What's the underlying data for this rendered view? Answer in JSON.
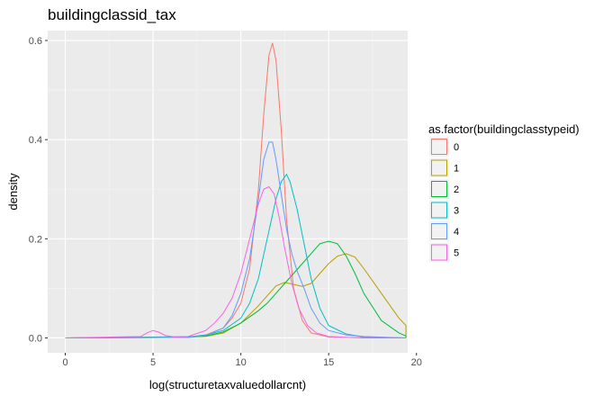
{
  "chart_data": {
    "type": "line",
    "title": "buildingclassid_tax",
    "xlabel": "log(structuretaxvaluedollarcnt)",
    "ylabel": "density",
    "xlim": [
      -1,
      19.5
    ],
    "ylim": [
      -0.03,
      0.62
    ],
    "x_ticks": [
      0,
      5,
      10,
      15,
      20
    ],
    "y_ticks": [
      0.0,
      0.2,
      0.4,
      0.6
    ],
    "x_tick_labels": [
      "0",
      "5",
      "10",
      "15",
      "20"
    ],
    "y_tick_labels": [
      "0.0",
      "0.2",
      "0.4",
      "0.6"
    ],
    "grid": true,
    "legend": {
      "title": "as.factor(buildingclasstypeid)",
      "position": "right"
    },
    "series": [
      {
        "name": "0",
        "color": "#F8766D",
        "x": [
          0,
          7,
          8,
          9,
          9.5,
          10,
          10.5,
          11,
          11.3,
          11.6,
          11.8,
          12.0,
          12.3,
          12.6,
          13,
          13.5,
          14,
          15,
          16,
          17,
          19.4
        ],
        "y": [
          0,
          0.001,
          0.006,
          0.02,
          0.04,
          0.07,
          0.14,
          0.3,
          0.45,
          0.57,
          0.595,
          0.56,
          0.42,
          0.24,
          0.1,
          0.035,
          0.01,
          0.002,
          0.001,
          0,
          0
        ]
      },
      {
        "name": "1",
        "color": "#B79F00",
        "x": [
          0,
          8,
          9,
          10,
          11,
          12,
          12.5,
          13,
          13.5,
          14,
          14.5,
          15,
          15.5,
          16,
          16.5,
          17,
          18,
          19,
          19.4,
          19.4
        ],
        "y": [
          0,
          0.003,
          0.01,
          0.03,
          0.065,
          0.105,
          0.112,
          0.108,
          0.104,
          0.11,
          0.13,
          0.15,
          0.165,
          0.17,
          0.163,
          0.14,
          0.09,
          0.04,
          0.025,
          0
        ]
      },
      {
        "name": "2",
        "color": "#00BA38",
        "x": [
          0,
          7,
          8,
          9,
          10,
          11,
          11.5,
          12,
          12.5,
          13,
          13.5,
          14,
          14.5,
          15,
          15.5,
          16,
          16.5,
          17,
          18,
          19,
          19.4,
          19.4
        ],
        "y": [
          0,
          0.001,
          0.004,
          0.012,
          0.03,
          0.055,
          0.07,
          0.09,
          0.11,
          0.13,
          0.15,
          0.17,
          0.19,
          0.195,
          0.19,
          0.165,
          0.13,
          0.09,
          0.035,
          0.01,
          0.004,
          0
        ]
      },
      {
        "name": "3",
        "color": "#00BFC4",
        "x": [
          0,
          7,
          8,
          9,
          10,
          10.5,
          11,
          11.5,
          12,
          12.3,
          12.6,
          12.8,
          13.2,
          13.6,
          14,
          14.5,
          15,
          16,
          17,
          19.4
        ],
        "y": [
          0,
          0.002,
          0.006,
          0.015,
          0.04,
          0.07,
          0.12,
          0.2,
          0.28,
          0.315,
          0.33,
          0.315,
          0.26,
          0.19,
          0.12,
          0.06,
          0.025,
          0.008,
          0.002,
          0
        ]
      },
      {
        "name": "4",
        "color": "#619CFF",
        "x": [
          0,
          7,
          8,
          9,
          9.5,
          10,
          10.5,
          11,
          11.3,
          11.6,
          11.8,
          12.0,
          12.3,
          12.6,
          12.9,
          13.2,
          13.6,
          14,
          14.5,
          15,
          16,
          17,
          18.5,
          19.4
        ],
        "y": [
          0,
          0.001,
          0.005,
          0.02,
          0.045,
          0.09,
          0.16,
          0.28,
          0.36,
          0.395,
          0.395,
          0.36,
          0.29,
          0.22,
          0.17,
          0.135,
          0.1,
          0.06,
          0.03,
          0.015,
          0.006,
          0.003,
          0.001,
          0
        ]
      },
      {
        "name": "5",
        "color": "#F564E3",
        "x": [
          0,
          4.3,
          4.7,
          5.0,
          5.3,
          5.7,
          6.2,
          7,
          8,
          8.5,
          9,
          9.5,
          10,
          10.5,
          11,
          11.3,
          11.6,
          11.9,
          12.2,
          12.5,
          12.9,
          13.3,
          13.8,
          14.3,
          15,
          16,
          19.4
        ],
        "y": [
          0,
          0.003,
          0.011,
          0.015,
          0.012,
          0.005,
          0.002,
          0.003,
          0.015,
          0.03,
          0.05,
          0.08,
          0.13,
          0.2,
          0.27,
          0.3,
          0.305,
          0.29,
          0.24,
          0.18,
          0.11,
          0.06,
          0.025,
          0.01,
          0.003,
          0.001,
          0
        ]
      }
    ]
  }
}
